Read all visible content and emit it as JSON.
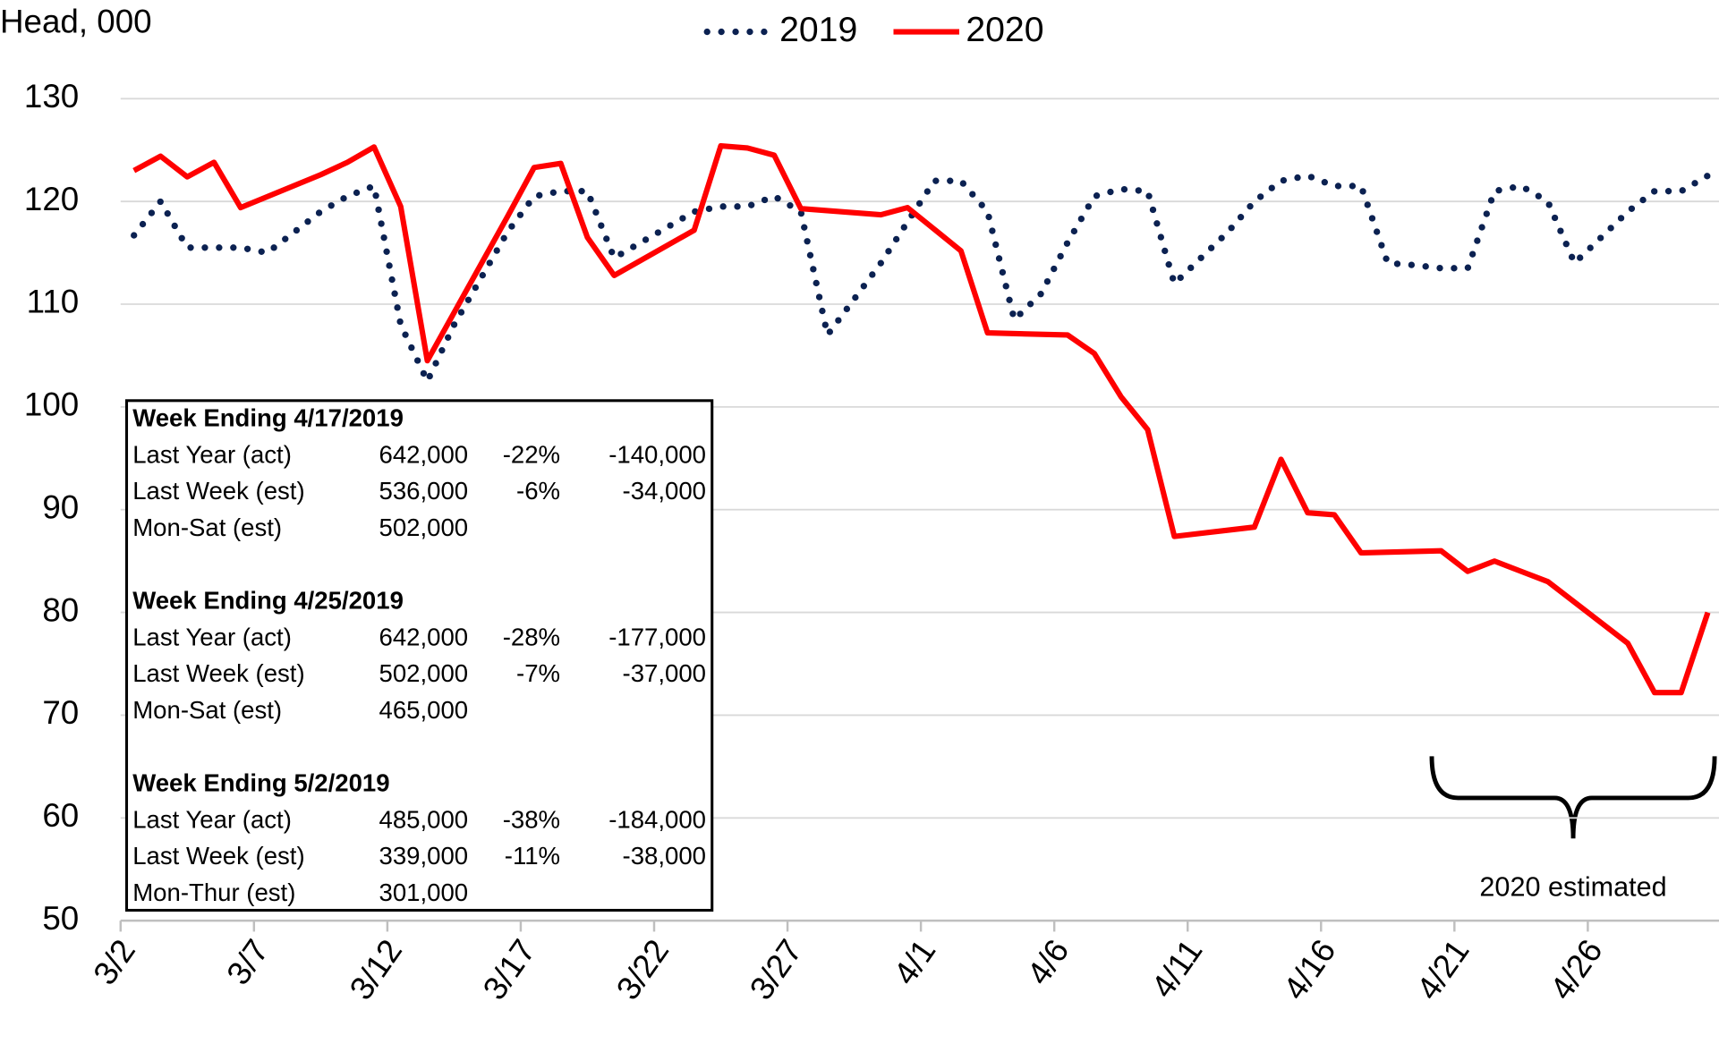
{
  "chart_data": {
    "type": "line",
    "y_label": "Head, 000",
    "xlim": [
      "3/2",
      "5/1"
    ],
    "xticks": [
      "3/2",
      "3/7",
      "3/12",
      "3/17",
      "3/22",
      "3/27",
      "4/1",
      "4/6",
      "4/11",
      "4/16",
      "4/21",
      "4/26"
    ],
    "ylim": [
      50,
      130
    ],
    "yticks": [
      50,
      60,
      70,
      80,
      90,
      100,
      110,
      120,
      130
    ],
    "grid": true,
    "legend": "top",
    "series": [
      {
        "name": "2019",
        "color": "#0b2151",
        "style": "dotted",
        "x": [
          "3/2",
          "3/3",
          "3/4",
          "3/5",
          "3/6",
          "3/7",
          "3/8",
          "3/9",
          "3/10",
          "3/11",
          "3/12",
          "3/13",
          "3/14",
          "3/15",
          "3/16",
          "3/17",
          "3/18",
          "3/19",
          "3/20",
          "3/21",
          "3/22",
          "3/23",
          "3/24",
          "3/25",
          "3/26",
          "3/27",
          "3/28",
          "3/29",
          "3/30",
          "3/31",
          "4/1",
          "4/2",
          "4/3",
          "4/4",
          "4/5",
          "4/6",
          "4/7",
          "4/8",
          "4/9",
          "4/10",
          "4/11",
          "4/12",
          "4/13",
          "4/14",
          "4/15",
          "4/16",
          "4/17",
          "4/18",
          "4/19",
          "4/20",
          "4/21",
          "4/22",
          "4/23",
          "4/24",
          "4/25",
          "4/26",
          "4/27",
          "4/28",
          "4/29",
          "4/30"
        ],
        "values": [
          116.7,
          120,
          115.5,
          115.5,
          115.5,
          115,
          117,
          119,
          120.5,
          121.5,
          108,
          102.5,
          108,
          112.5,
          117,
          120.5,
          121,
          121,
          114.5,
          116,
          117.5,
          119,
          119.5,
          119.5,
          120.5,
          119,
          107,
          110.5,
          114,
          118,
          122,
          122,
          119,
          108.5,
          111,
          116,
          120.5,
          121.2,
          121,
          112,
          114.5,
          117,
          120,
          122,
          122.5,
          121.5,
          121.5,
          114,
          113.8,
          113.5,
          113.5,
          121,
          121.5,
          120,
          114,
          116.5,
          119,
          121,
          121,
          122.5
        ]
      },
      {
        "name": "2020",
        "color": "#ff0000",
        "style": "solid",
        "x": [
          "3/2",
          "3/3",
          "3/4",
          "3/5",
          "3/6",
          "3/9",
          "3/10",
          "3/11",
          "3/12",
          "3/13",
          "3/16",
          "3/17",
          "3/18",
          "3/19",
          "3/20",
          "3/23",
          "3/24",
          "3/25",
          "3/26",
          "3/27",
          "3/30",
          "3/31",
          "4/1",
          "4/2",
          "4/3",
          "4/6",
          "4/7",
          "4/8",
          "4/9",
          "4/10",
          "4/13",
          "4/14",
          "4/15",
          "4/16",
          "4/17",
          "4/20",
          "4/21",
          "4/22",
          "4/23",
          "4/24",
          "4/27",
          "4/28",
          "4/29",
          "4/30"
        ],
        "values": [
          123,
          124.4,
          122.4,
          123.8,
          119.4,
          122.6,
          123.8,
          125.3,
          119.5,
          104.5,
          118.5,
          123.3,
          123.7,
          116.5,
          112.8,
          117.2,
          125.4,
          125.2,
          124.5,
          119.3,
          118.7,
          119.4,
          117.3,
          115.2,
          107.2,
          107,
          105.2,
          101,
          97.8,
          87.4,
          88.3,
          94.9,
          89.7,
          89.5,
          85.8,
          86,
          84,
          85,
          84,
          83,
          77,
          72.2,
          72.2,
          80
        ]
      }
    ],
    "annotation": "2020 estimated"
  },
  "table": [
    {
      "title": "Week Ending 4/17/2019",
      "rows": [
        [
          "Last Year (act)",
          "642,000",
          "-22%",
          "-140,000"
        ],
        [
          "Last Week (est)",
          "536,000",
          "-6%",
          "-34,000"
        ],
        [
          "Mon-Sat (est)",
          "502,000"
        ]
      ]
    },
    {
      "title": "Week Ending 4/25/2019",
      "rows": [
        [
          "Last Year (act)",
          "642,000",
          "-28%",
          "-177,000"
        ],
        [
          "Last Week (est)",
          "502,000",
          "-7%",
          "-37,000"
        ],
        [
          "Mon-Sat (est)",
          "465,000"
        ]
      ]
    },
    {
      "title": "Week Ending 5/2/2019",
      "rows": [
        [
          "Last Year (act)",
          "485,000",
          "-38%",
          "-184,000"
        ],
        [
          "Last Week (est)",
          "339,000",
          "-11%",
          "-38,000"
        ],
        [
          "Mon-Thur (est)",
          "301,000"
        ]
      ]
    }
  ]
}
